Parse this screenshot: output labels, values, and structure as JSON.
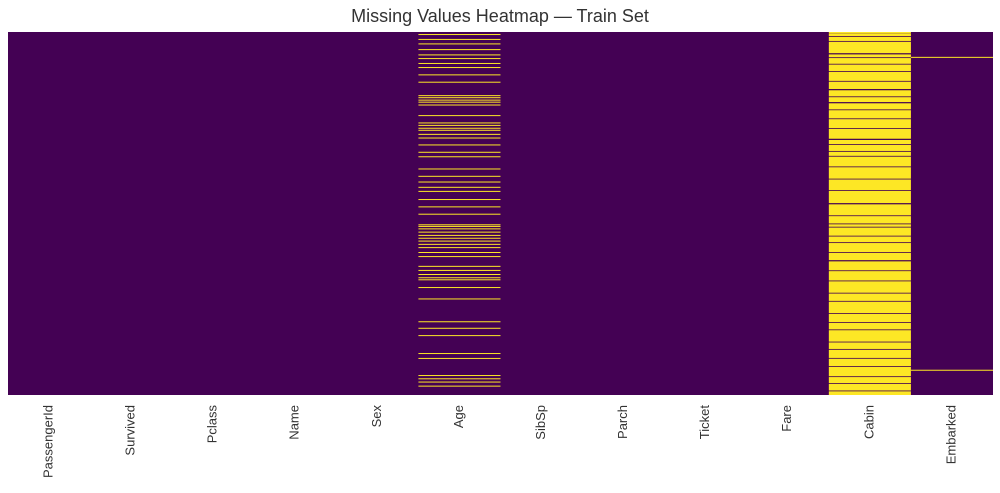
{
  "chart_data": {
    "type": "heatmap",
    "title": "Missing Values Heatmap — Train Set",
    "categories": [
      "PassengerId",
      "Survived",
      "Pclass",
      "Name",
      "Sex",
      "Age",
      "SibSp",
      "Parch",
      "Ticket",
      "Fare",
      "Cabin",
      "Embarked"
    ],
    "ylim": [
      0,
      891
    ],
    "color_present": "#440154",
    "color_missing": "#fde725",
    "missing_ranges": [
      [],
      [],
      [],
      [],
      [],
      [
        [
          5,
          6
        ],
        [
          17,
          18
        ],
        [
          28,
          29
        ],
        [
          42,
          43
        ],
        [
          55,
          56
        ],
        [
          64,
          65
        ],
        [
          76,
          78
        ],
        [
          86,
          87
        ],
        [
          104,
          105
        ],
        [
          122,
          124
        ],
        [
          155,
          157
        ],
        [
          160,
          161
        ],
        [
          166,
          168
        ],
        [
          171,
          172
        ],
        [
          178,
          179
        ],
        [
          204,
          206
        ],
        [
          222,
          223
        ],
        [
          228,
          230
        ],
        [
          235,
          236
        ],
        [
          240,
          241
        ],
        [
          250,
          251
        ],
        [
          259,
          260
        ],
        [
          276,
          277
        ],
        [
          294,
          296
        ],
        [
          305,
          306
        ],
        [
          335,
          336
        ],
        [
          353,
          354
        ],
        [
          367,
          368
        ],
        [
          380,
          381
        ],
        [
          390,
          392
        ],
        [
          410,
          411
        ],
        [
          428,
          429
        ],
        [
          446,
          447
        ],
        [
          472,
          473
        ],
        [
          476,
          478
        ],
        [
          482,
          484
        ],
        [
          490,
          491
        ],
        [
          498,
          499
        ],
        [
          505,
          506
        ],
        [
          512,
          514
        ],
        [
          520,
          521
        ],
        [
          528,
          530
        ],
        [
          540,
          541
        ],
        [
          550,
          551
        ],
        [
          574,
          576
        ],
        [
          584,
          585
        ],
        [
          594,
          595
        ],
        [
          602,
          603
        ],
        [
          607,
          609
        ],
        [
          626,
          627
        ],
        [
          654,
          655
        ],
        [
          710,
          711
        ],
        [
          726,
          727
        ],
        [
          744,
          745
        ],
        [
          788,
          789
        ],
        [
          800,
          801
        ],
        [
          842,
          843
        ],
        [
          850,
          852
        ],
        [
          858,
          860
        ],
        [
          868,
          869
        ]
      ],
      [],
      [],
      [],
      [],
      [
        [
          0,
          1
        ],
        [
          3,
          10
        ],
        [
          12,
          22
        ],
        [
          24,
          52
        ],
        [
          55,
          62
        ],
        [
          64,
          78
        ],
        [
          80,
          96
        ],
        [
          98,
          120
        ],
        [
          122,
          140
        ],
        [
          143,
          158
        ],
        [
          160,
          172
        ],
        [
          175,
          190
        ],
        [
          192,
          212
        ],
        [
          214,
          236
        ],
        [
          238,
          262
        ],
        [
          265,
          275
        ],
        [
          277,
          292
        ],
        [
          294,
          304
        ],
        [
          306,
          330
        ],
        [
          332,
          360
        ],
        [
          362,
          388
        ],
        [
          390,
          420
        ],
        [
          423,
          450
        ],
        [
          452,
          470
        ],
        [
          472,
          478
        ],
        [
          480,
          500
        ],
        [
          502,
          516
        ],
        [
          518,
          540
        ],
        [
          542,
          560
        ],
        [
          563,
          585
        ],
        [
          587,
          610
        ],
        [
          612,
          640
        ],
        [
          642,
          660
        ],
        [
          662,
          690
        ],
        [
          692,
          712
        ],
        [
          714,
          730
        ],
        [
          732,
          760
        ],
        [
          762,
          778
        ],
        [
          780,
          800
        ],
        [
          802,
          820
        ],
        [
          822,
          845
        ],
        [
          847,
          862
        ],
        [
          864,
          880
        ],
        [
          882,
          891
        ]
      ],
      [
        [
          61,
          62
        ],
        [
          829,
          830
        ]
      ]
    ]
  }
}
